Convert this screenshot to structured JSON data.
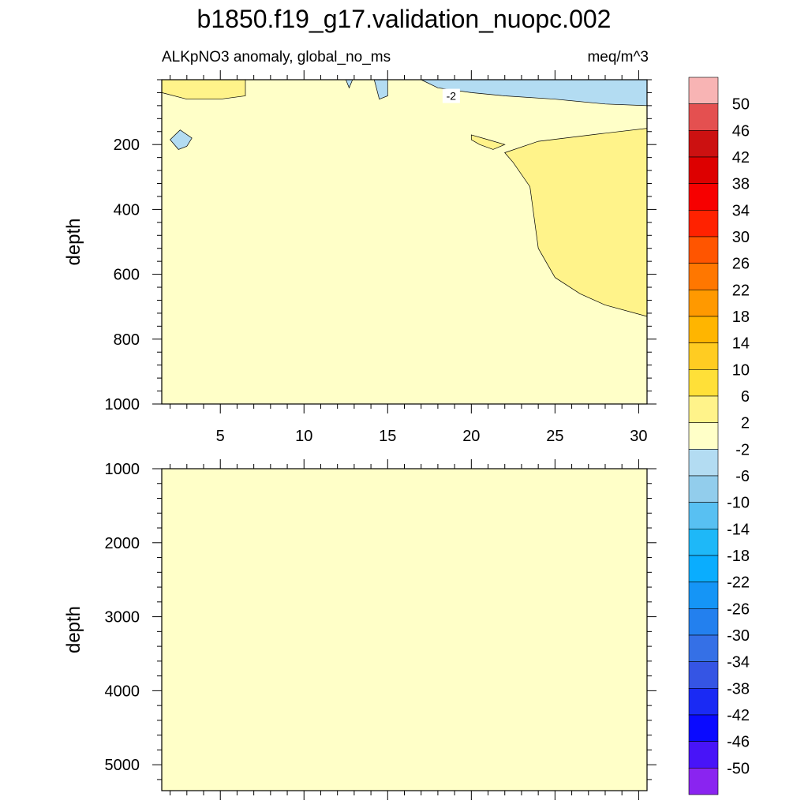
{
  "title": "b1850.f19_g17.validation_nuopc.002",
  "subtitle_left": "ALKpNO3 anomaly, global_no_ms",
  "subtitle_right": "meq/m^3",
  "chart_data": [
    {
      "type": "heatmap",
      "panel": "upper",
      "xlabel": "",
      "ylabel": "depth",
      "xlim": [
        1.5,
        30.5
      ],
      "ylim": [
        1000,
        0
      ],
      "x_ticks": [
        5,
        10,
        15,
        20,
        25,
        30
      ],
      "x_tick_labels": [
        "5",
        "10",
        "15",
        "20",
        "25",
        "30"
      ],
      "y_ticks": [
        200,
        400,
        600,
        800,
        1000
      ],
      "y_tick_labels": [
        "200",
        "400",
        "600",
        "800",
        "1000"
      ],
      "background_level": "-2 to 2",
      "contour_labels": [
        {
          "text": "-2",
          "x": 18.8,
          "y": 50
        }
      ],
      "regions": [
        {
          "level": "2 to 6",
          "points": [
            [
              1.5,
              40
            ],
            [
              3,
              60
            ],
            [
              5,
              60
            ],
            [
              6.5,
              50
            ],
            [
              6.5,
              0
            ],
            [
              1.5,
              0
            ]
          ]
        },
        {
          "level": "-6 to -2",
          "points": [
            [
              12.5,
              0
            ],
            [
              12.7,
              25
            ],
            [
              12.9,
              0
            ]
          ]
        },
        {
          "level": "-6 to -2",
          "points": [
            [
              14.2,
              0
            ],
            [
              14.5,
              60
            ],
            [
              15,
              50
            ],
            [
              15,
              0
            ]
          ]
        },
        {
          "level": "-6 to -2",
          "points": [
            [
              17,
              0
            ],
            [
              18,
              25
            ],
            [
              20,
              40
            ],
            [
              22,
              50
            ],
            [
              25,
              60
            ],
            [
              28,
              75
            ],
            [
              30.5,
              80
            ],
            [
              30.5,
              0
            ]
          ]
        },
        {
          "level": "-6 to -2",
          "points": [
            [
              2,
              185
            ],
            [
              2.6,
              155
            ],
            [
              3.3,
              180
            ],
            [
              3,
              205
            ],
            [
              2.5,
              215
            ]
          ]
        },
        {
          "level": "2 to 6",
          "points": [
            [
              20,
              170
            ],
            [
              21,
              185
            ],
            [
              22,
              200
            ],
            [
              21.3,
              215
            ],
            [
              20.5,
              200
            ],
            [
              20,
              185
            ]
          ]
        },
        {
          "level": "2 to 6",
          "points": [
            [
              22,
              225
            ],
            [
              24,
              190
            ],
            [
              28,
              165
            ],
            [
              30.5,
              150
            ],
            [
              30.5,
              730
            ],
            [
              28,
              695
            ],
            [
              26.5,
              660
            ],
            [
              25,
              610
            ],
            [
              24,
              520
            ],
            [
              23.5,
              330
            ],
            [
              22.5,
              255
            ]
          ]
        }
      ]
    },
    {
      "type": "heatmap",
      "panel": "lower",
      "xlabel": "",
      "ylabel": "depth",
      "xlim": [
        1.5,
        30.5
      ],
      "ylim": [
        5350,
        1000
      ],
      "y_ticks": [
        1000,
        2000,
        3000,
        4000,
        5000
      ],
      "y_tick_labels": [
        "1000",
        "2000",
        "3000",
        "4000",
        "5000"
      ],
      "background_level": "-2 to 2",
      "contour_labels": [],
      "regions": []
    }
  ],
  "colorbar": {
    "labels": [
      "50",
      "46",
      "42",
      "38",
      "34",
      "30",
      "26",
      "22",
      "18",
      "14",
      "10",
      "6",
      "2",
      "-2",
      "-6",
      "-10",
      "-14",
      "-18",
      "-22",
      "-26",
      "-30",
      "-34",
      "-38",
      "-42",
      "-46",
      "-50"
    ],
    "colors": [
      "#F8B4B4",
      "#E45050",
      "#CC1111",
      "#DD0000",
      "#F70000",
      "#FF2200",
      "#FF5500",
      "#FF7700",
      "#FF9900",
      "#FFB500",
      "#FFCC22",
      "#FFE038",
      "#FFF38A",
      "#FFFFC8",
      "#B3DCF2",
      "#92CDEC",
      "#58C0F2",
      "#1EB8F8",
      "#0AADFE",
      "#1595F6",
      "#2380EE",
      "#3570E6",
      "#3555E4",
      "#1A2AF4",
      "#0A0AFF",
      "#4814F8",
      "#8A24F0"
    ]
  }
}
